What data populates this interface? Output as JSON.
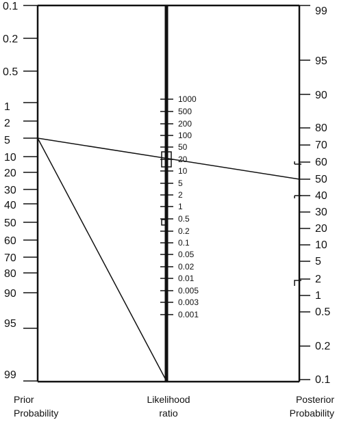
{
  "axes": {
    "prior": {
      "title_line1": "Prior",
      "title_line2": "Probability",
      "ticks": [
        "0.1",
        "0.2",
        "0.5",
        "1",
        "2",
        "5",
        "10",
        "20",
        "30",
        "40",
        "50",
        "60",
        "70",
        "80",
        "90",
        "95",
        "99"
      ]
    },
    "likelihood": {
      "title_line1": "Likelihood",
      "title_line2": "ratio",
      "ticks": [
        "1000",
        "500",
        "200",
        "100",
        "50",
        "20",
        "10",
        "5",
        "2",
        "1",
        "0.5",
        "0.2",
        "0.1",
        "0.05",
        "0.02",
        "0.01",
        "0.005",
        "0.003",
        "0.001"
      ]
    },
    "posterior": {
      "title_line1": "Posterior",
      "title_line2": "Probability",
      "ticks": [
        "99",
        "95",
        "90",
        "80",
        "70",
        "60",
        "50",
        "40",
        "30",
        "20",
        "10",
        "5",
        "2",
        "1",
        "0.5",
        "0.2",
        "0.1"
      ]
    }
  },
  "lines": [
    {
      "name": "line-prior-5-to-posterior-50",
      "prior": 5,
      "posterior": 50
    },
    {
      "name": "line-prior-5-to-lr-bottom",
      "prior": 5,
      "lr": "0.001 (bottom)"
    }
  ],
  "colors": {
    "ink": "#111111",
    "background": "#ffffff"
  }
}
